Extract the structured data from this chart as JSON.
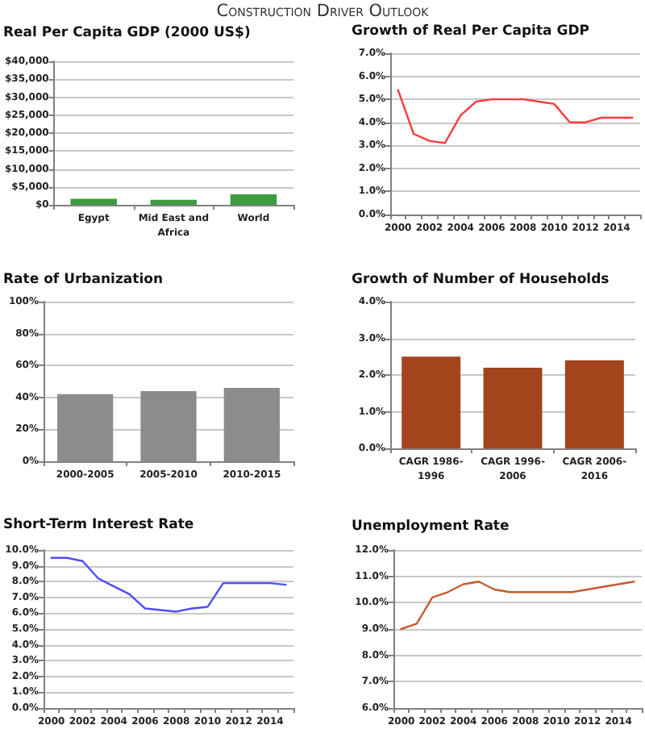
{
  "chart_data": [
    {
      "type": "other",
      "title": "Construction Driver Outlook"
    },
    {
      "type": "bar",
      "title": "Real Per Capita GDP (2000 US$)",
      "categories": [
        "Egypt",
        "Mid East and Africa",
        "World"
      ],
      "values": [
        1700,
        1400,
        2900
      ],
      "color": "#3d9b3d",
      "ylim": [
        0,
        40000
      ],
      "yticks": [
        {
          "value": 0,
          "label": "$0"
        },
        {
          "value": 5000,
          "label": "$5,000"
        },
        {
          "value": 10000,
          "label": "$10,000"
        },
        {
          "value": 15000,
          "label": "$15,000"
        },
        {
          "value": 20000,
          "label": "$20,000"
        },
        {
          "value": 25000,
          "label": "$25,000"
        },
        {
          "value": 30000,
          "label": "$30,000"
        },
        {
          "value": 35000,
          "label": "$35,000"
        },
        {
          "value": 40000,
          "label": "$40,000"
        }
      ],
      "grid": "y"
    },
    {
      "type": "line",
      "title": "Growth of Real Per Capita GDP",
      "categories": [
        "2000",
        null,
        "2002",
        null,
        "2004",
        null,
        "2006",
        null,
        "2008",
        null,
        "2010",
        null,
        "2012",
        null,
        "2014",
        null
      ],
      "values": [
        5.4,
        3.5,
        3.2,
        3.1,
        4.3,
        4.9,
        5.0,
        5.0,
        5.0,
        4.9,
        4.8,
        4.0,
        4.0,
        4.2,
        4.2,
        4.2
      ],
      "color": "#ff3b3b",
      "ylim": [
        0,
        7
      ],
      "yticks": [
        {
          "value": 0,
          "label": "0.0%"
        },
        {
          "value": 1,
          "label": "1.0%"
        },
        {
          "value": 2,
          "label": "2.0%"
        },
        {
          "value": 3,
          "label": "3.0%"
        },
        {
          "value": 4,
          "label": "4.0%"
        },
        {
          "value": 5,
          "label": "5.0%"
        },
        {
          "value": 6,
          "label": "6.0%"
        },
        {
          "value": 7,
          "label": "7.0%"
        }
      ],
      "grid": "y"
    },
    {
      "type": "bar",
      "title": "Rate of Urbanization",
      "categories": [
        "2000-2005",
        "2005-2010",
        "2010-2015"
      ],
      "values": [
        42,
        44,
        46
      ],
      "color": "#8c8c8c",
      "ylim": [
        0,
        100
      ],
      "yticks": [
        {
          "value": 0,
          "label": "0%"
        },
        {
          "value": 20,
          "label": "20%"
        },
        {
          "value": 40,
          "label": "40%"
        },
        {
          "value": 60,
          "label": "60%"
        },
        {
          "value": 80,
          "label": "80%"
        },
        {
          "value": 100,
          "label": "100%"
        }
      ],
      "grid": "y"
    },
    {
      "type": "bar",
      "title": "Growth of Number of Households",
      "categories": [
        "CAGR 1986-1996",
        "CAGR 1996-2006",
        "CAGR 2006-2016"
      ],
      "values": [
        2.5,
        2.2,
        2.4
      ],
      "color": "#a4441c",
      "ylim": [
        0,
        4
      ],
      "yticks": [
        {
          "value": 0,
          "label": "0.0%"
        },
        {
          "value": 1,
          "label": "1.0%"
        },
        {
          "value": 2,
          "label": "2.0%"
        },
        {
          "value": 3,
          "label": "3.0%"
        },
        {
          "value": 4,
          "label": "4.0%"
        }
      ],
      "grid": "y"
    },
    {
      "type": "line",
      "title": "Short-Term Interest Rate",
      "categories": [
        "2000",
        null,
        "2002",
        null,
        "2004",
        null,
        "2006",
        null,
        "2008",
        null,
        "2010",
        null,
        "2012",
        null,
        "2014",
        null
      ],
      "values": [
        9.5,
        9.5,
        9.3,
        8.2,
        7.7,
        7.2,
        6.3,
        6.2,
        6.1,
        6.3,
        6.4,
        7.9,
        7.9,
        7.9,
        7.9,
        7.8
      ],
      "color": "#4c4cff",
      "ylim": [
        0,
        10
      ],
      "yticks": [
        {
          "value": 0,
          "label": "0.0%"
        },
        {
          "value": 1,
          "label": "1.0%"
        },
        {
          "value": 2,
          "label": "2.0%"
        },
        {
          "value": 3,
          "label": "3.0%"
        },
        {
          "value": 4,
          "label": "4.0%"
        },
        {
          "value": 5,
          "label": "5.0%"
        },
        {
          "value": 6,
          "label": "6.0%"
        },
        {
          "value": 7,
          "label": "7.0%"
        },
        {
          "value": 8,
          "label": "8.0%"
        },
        {
          "value": 9,
          "label": "9.0%"
        },
        {
          "value": 10,
          "label": "10.0%"
        }
      ],
      "grid": "y"
    },
    {
      "type": "line",
      "title": "Unemployment Rate",
      "categories": [
        "2000",
        null,
        "2002",
        null,
        "2004",
        null,
        "2006",
        null,
        "2008",
        null,
        "2010",
        null,
        "2012",
        null,
        "2014",
        null
      ],
      "values": [
        9.0,
        9.2,
        10.2,
        10.4,
        10.7,
        10.8,
        10.5,
        10.4,
        10.4,
        10.4,
        10.4,
        10.4,
        10.5,
        10.6,
        10.7,
        10.8
      ],
      "color": "#c65a2e",
      "ylim": [
        6,
        12
      ],
      "yticks": [
        {
          "value": 6,
          "label": "6.0%"
        },
        {
          "value": 7,
          "label": "7.0%"
        },
        {
          "value": 8,
          "label": "8.0%"
        },
        {
          "value": 9,
          "label": "9.0%"
        },
        {
          "value": 10,
          "label": "10.0%"
        },
        {
          "value": 11,
          "label": "11.0%"
        },
        {
          "value": 12,
          "label": "12.0%"
        }
      ],
      "grid": "y"
    }
  ]
}
